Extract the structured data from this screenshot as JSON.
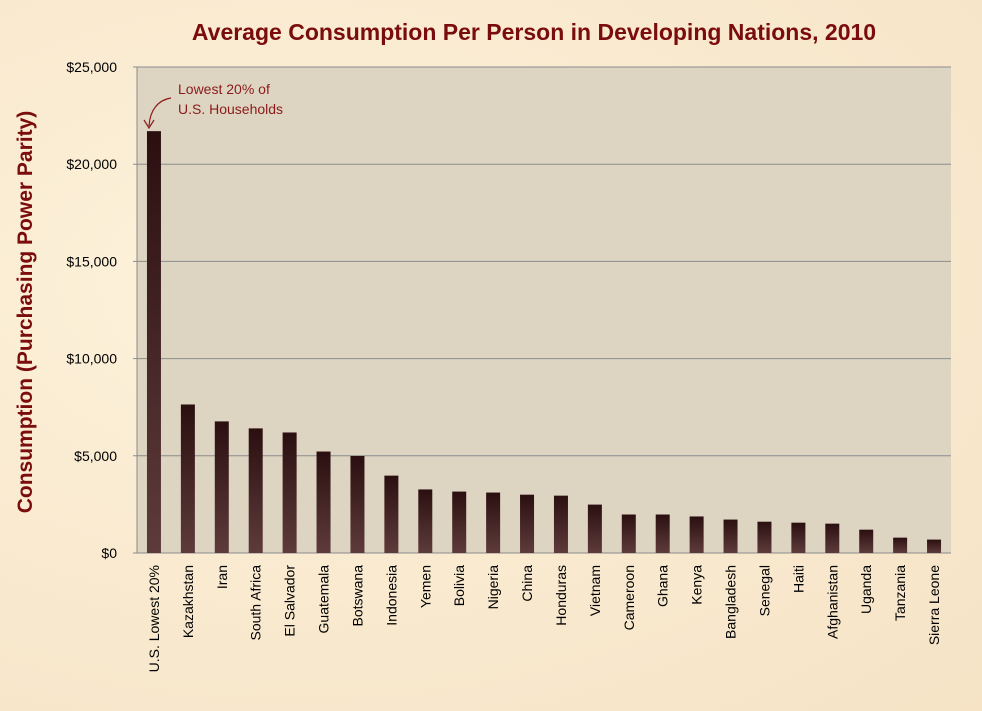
{
  "chart_data": {
    "type": "bar",
    "title": "Average Consumption Per Person in Developing Nations, 2010",
    "ylabel": "Consumption (Purchasing Power Parity)",
    "xlabel": "",
    "ylim": [
      0,
      25000
    ],
    "yticks": [
      "$0",
      "$5,000",
      "$10,000",
      "$15,000",
      "$20,000",
      "$25,000"
    ],
    "ytick_values": [
      0,
      5000,
      10000,
      15000,
      20000,
      25000
    ],
    "grid": true,
    "categories": [
      "U.S. Lowest 20%",
      "Kazakhstan",
      "Iran",
      "South Africa",
      "El Salvador",
      "Guatemala",
      "Botswana",
      "Indonesia",
      "Yemen",
      "Bolivia",
      "Nigeria",
      "China",
      "Honduras",
      "Vietnam",
      "Cameroon",
      "Ghana",
      "Kenya",
      "Bangladesh",
      "Senegal",
      "Haiti",
      "Afghanistan",
      "Uganda",
      "Tanzania",
      "Sierra Leone"
    ],
    "values": [
      21700,
      7640,
      6770,
      6410,
      6200,
      5220,
      4990,
      3980,
      3270,
      3160,
      3110,
      3000,
      2950,
      2490,
      1980,
      1980,
      1880,
      1720,
      1610,
      1560,
      1510,
      1200,
      790,
      690
    ],
    "annotation": {
      "lines": [
        "Lowest  20% of",
        "U.S. Households"
      ],
      "target": "U.S. Lowest 20%"
    },
    "colors": {
      "title": "#7a0c0c",
      "plot_bg": "#ddd5c2",
      "bar_top": "#2b0f10",
      "bar_bottom": "#5e3b3b",
      "grid": "#8c8c8c",
      "annotation": "#8b1a1a"
    }
  }
}
